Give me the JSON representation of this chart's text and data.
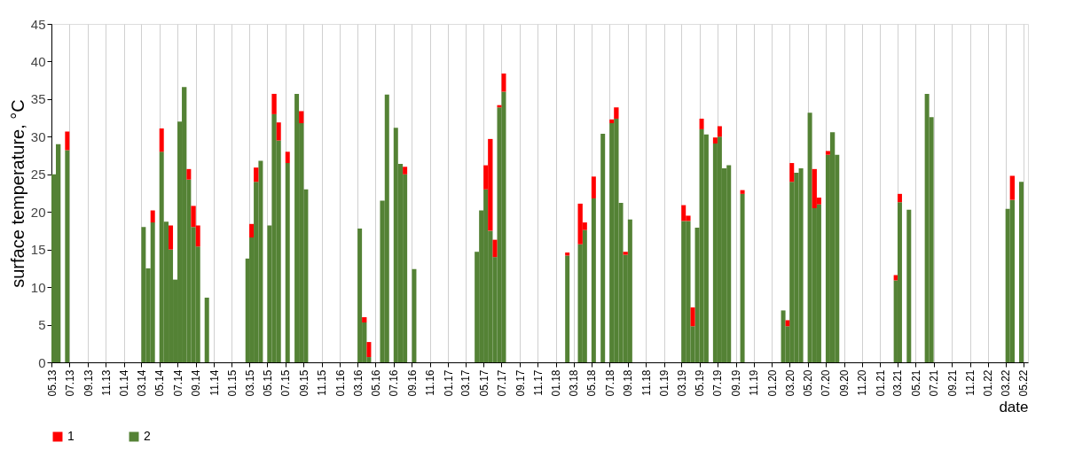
{
  "chart_data": {
    "type": "bar",
    "stacked": true,
    "xlabel": "date",
    "ylabel": "surface temperature, °C",
    "x": [
      "2013-05-01",
      "2013-05-16",
      "2013-06-16",
      "2014-03-01",
      "2014-03-16",
      "2014-04-01",
      "2014-05-01",
      "2014-05-16",
      "2014-06-01",
      "2014-06-16",
      "2014-07-01",
      "2014-07-16",
      "2014-08-01",
      "2014-08-16",
      "2014-09-01",
      "2014-10-01",
      "2015-02-16",
      "2015-03-01",
      "2015-03-16",
      "2015-04-01",
      "2015-05-01",
      "2015-05-16",
      "2015-06-01",
      "2015-07-01",
      "2015-08-01",
      "2015-08-16",
      "2015-09-01",
      "2016-03-01",
      "2016-03-16",
      "2016-04-01",
      "2016-05-16",
      "2016-06-01",
      "2016-07-01",
      "2016-07-16",
      "2016-08-01",
      "2016-09-01",
      "2017-04-01",
      "2017-04-16",
      "2017-05-01",
      "2017-05-16",
      "2017-06-01",
      "2017-06-16",
      "2017-07-01",
      "2018-02-01",
      "2018-03-16",
      "2018-04-01",
      "2018-05-01",
      "2018-06-01",
      "2018-07-01",
      "2018-07-16",
      "2018-08-01",
      "2018-08-16",
      "2018-09-01",
      "2019-03-01",
      "2019-03-16",
      "2019-04-01",
      "2019-04-16",
      "2019-05-01",
      "2019-05-16",
      "2019-06-16",
      "2019-07-01",
      "2019-07-16",
      "2019-08-01",
      "2019-09-16",
      "2020-02-01",
      "2020-02-16",
      "2020-03-01",
      "2020-03-16",
      "2020-04-01",
      "2020-05-01",
      "2020-05-16",
      "2020-06-01",
      "2020-07-01",
      "2020-07-16",
      "2020-08-01",
      "2021-02-16",
      "2021-03-01",
      "2021-04-01",
      "2021-06-01",
      "2021-06-16",
      "2022-03-01",
      "2022-03-16",
      "2022-04-16"
    ],
    "series": [
      {
        "name": "2",
        "color": "#548235",
        "values": [
          25,
          29,
          28.2,
          18,
          12.5,
          18.6,
          28,
          18.7,
          15,
          11,
          32,
          36.6,
          24.3,
          18,
          15.4,
          8.6,
          13.8,
          16.6,
          24,
          26.8,
          18.2,
          33,
          29.5,
          26.5,
          35.7,
          31.8,
          23,
          17.8,
          5.3,
          0.7,
          21.5,
          35.6,
          31.2,
          26.4,
          25,
          12.4,
          14.7,
          20.2,
          23,
          17.5,
          14,
          33.9,
          36,
          14.2,
          15.7,
          17.6,
          21.8,
          30.4,
          31.8,
          32.4,
          21.2,
          14.3,
          19,
          18.8,
          18.8,
          4.8,
          17.9,
          31,
          30.3,
          29.1,
          30,
          25.8,
          26.2,
          22.4,
          6.9,
          4.8,
          24,
          25.2,
          25.8,
          33.2,
          20.5,
          21,
          27.6,
          30.6,
          27.6,
          10.9,
          21.3,
          20.3,
          35.7,
          32.6,
          20.4,
          21.6,
          24
        ]
      },
      {
        "name": "1",
        "color": "#ff0000",
        "values": [
          null,
          null,
          2.5,
          null,
          null,
          1.6,
          3.1,
          null,
          3.2,
          null,
          null,
          null,
          1.4,
          2.8,
          2.8,
          null,
          null,
          1.8,
          1.9,
          null,
          null,
          2.7,
          2.4,
          1.5,
          null,
          1.6,
          null,
          null,
          0.7,
          2,
          null,
          null,
          null,
          null,
          1,
          null,
          null,
          null,
          3.2,
          12.2,
          2.3,
          0.3,
          2.4,
          0.4,
          5.4,
          1,
          2.9,
          null,
          0.5,
          1.5,
          null,
          0.4,
          null,
          2.1,
          0.7,
          2.5,
          null,
          1.4,
          null,
          0.8,
          1.4,
          null,
          null,
          0.5,
          null,
          0.8,
          2.5,
          null,
          null,
          null,
          5.2,
          0.9,
          0.5,
          null,
          null,
          0.7,
          1.1,
          null,
          null,
          null,
          null,
          3.2,
          null
        ]
      }
    ],
    "xlim": [
      "2013-05-01",
      "2022-05-16"
    ],
    "xticks": [
      {
        "value": "2013-05",
        "label": "05.13"
      },
      {
        "value": "2013-07",
        "label": "07.13"
      },
      {
        "value": "2013-09",
        "label": "09.13"
      },
      {
        "value": "2013-11",
        "label": "11.13"
      },
      {
        "value": "2014-01",
        "label": "01.14"
      },
      {
        "value": "2014-03",
        "label": "03.14"
      },
      {
        "value": "2014-05",
        "label": "05.14"
      },
      {
        "value": "2014-07",
        "label": "07.14"
      },
      {
        "value": "2014-09",
        "label": "09.14"
      },
      {
        "value": "2014-11",
        "label": "11.14"
      },
      {
        "value": "2015-01",
        "label": "01.15"
      },
      {
        "value": "2015-03",
        "label": "03.15"
      },
      {
        "value": "2015-05",
        "label": "05.15"
      },
      {
        "value": "2015-07",
        "label": "07.15"
      },
      {
        "value": "2015-09",
        "label": "09.15"
      },
      {
        "value": "2015-11",
        "label": "11.15"
      },
      {
        "value": "2016-01",
        "label": "01.16"
      },
      {
        "value": "2016-03",
        "label": "03.16"
      },
      {
        "value": "2016-05",
        "label": "05.16"
      },
      {
        "value": "2016-07",
        "label": "07.16"
      },
      {
        "value": "2016-09",
        "label": "09.16"
      },
      {
        "value": "2016-11",
        "label": "11.16"
      },
      {
        "value": "2017-01",
        "label": "01.17"
      },
      {
        "value": "2017-03",
        "label": "03.17"
      },
      {
        "value": "2017-05",
        "label": "05.17"
      },
      {
        "value": "2017-07",
        "label": "07.17"
      },
      {
        "value": "2017-09",
        "label": "09.17"
      },
      {
        "value": "2017-11",
        "label": "11.17"
      },
      {
        "value": "2018-01",
        "label": "01.18"
      },
      {
        "value": "2018-03",
        "label": "03.18"
      },
      {
        "value": "2018-05",
        "label": "05.18"
      },
      {
        "value": "2018-07",
        "label": "07.18"
      },
      {
        "value": "2018-09",
        "label": "09.18"
      },
      {
        "value": "2018-11",
        "label": "11.18"
      },
      {
        "value": "2019-01",
        "label": "01.19"
      },
      {
        "value": "2019-03",
        "label": "03.19"
      },
      {
        "value": "2019-05",
        "label": "05.19"
      },
      {
        "value": "2019-07",
        "label": "07.19"
      },
      {
        "value": "2019-09",
        "label": "09.19"
      },
      {
        "value": "2019-11",
        "label": "11.19"
      },
      {
        "value": "2020-01",
        "label": "01.20"
      },
      {
        "value": "2020-03",
        "label": "03.20"
      },
      {
        "value": "2020-05",
        "label": "05.20"
      },
      {
        "value": "2020-07",
        "label": "07.20"
      },
      {
        "value": "2020-09",
        "label": "09.20"
      },
      {
        "value": "2020-11",
        "label": "11.20"
      },
      {
        "value": "2021-01",
        "label": "01.21"
      },
      {
        "value": "2021-03",
        "label": "03.21"
      },
      {
        "value": "2021-05",
        "label": "05.21"
      },
      {
        "value": "2021-07",
        "label": "07.21"
      },
      {
        "value": "2021-09",
        "label": "09.21"
      },
      {
        "value": "2021-11",
        "label": "11.21"
      },
      {
        "value": "2022-01",
        "label": "01.22"
      },
      {
        "value": "2022-03",
        "label": "03.22"
      },
      {
        "value": "2022-05",
        "label": "05.22"
      }
    ],
    "ylim": [
      0,
      45
    ],
    "yticks": [
      0,
      5,
      10,
      15,
      20,
      25,
      30,
      35,
      40,
      45
    ],
    "grid": "x",
    "legend": "bottom"
  }
}
